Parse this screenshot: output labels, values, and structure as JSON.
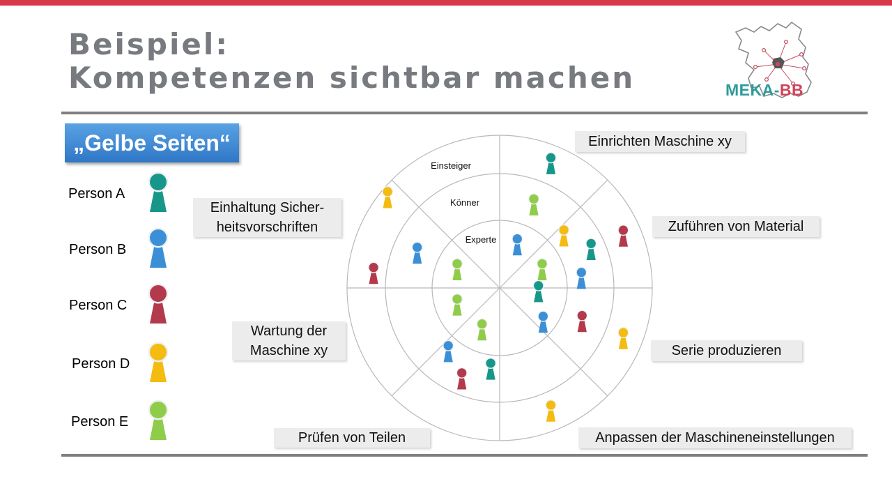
{
  "title": {
    "line1": "Beispiel:",
    "line2": "Kompetenzen sichtbar machen"
  },
  "logo": {
    "text_left": "MEKA-",
    "text_right": "BB"
  },
  "legend": {
    "heading": "„Gelbe Seiten“",
    "persons": [
      {
        "id": "A",
        "label": "Person A",
        "color": "#17978a"
      },
      {
        "id": "B",
        "label": "Person B",
        "color": "#3b8fd6"
      },
      {
        "id": "C",
        "label": "Person C",
        "color": "#b33a4c"
      },
      {
        "id": "D",
        "label": "Person D",
        "color": "#f4bb10"
      },
      {
        "id": "E",
        "label": "Person E",
        "color": "#8fcc4a"
      }
    ]
  },
  "chart_data": {
    "type": "radar-matrix",
    "rings": [
      "Experte",
      "Könner",
      "Einsteiger"
    ],
    "sectors": [
      "Einrichten Maschine xy",
      "Zuführen von Material",
      "Serie produzieren",
      "Anpassen der Maschineneinstellungen",
      "Prüfen von Teilen",
      "Wartung der Maschine xy",
      "Einhaltung Sicher-heitsvorschriften"
    ],
    "sector_labels": [
      [
        "Einrichten Maschine xy"
      ],
      [
        "Zuführen von Material"
      ],
      [
        "Serie produzieren"
      ],
      [
        "Anpassen der Maschineneinstellungen"
      ],
      [
        "Prüfen von Teilen"
      ],
      [
        "Wartung der",
        "Maschine xy"
      ],
      [
        "Einhaltung Sicher-",
        "heitsvorschriften"
      ]
    ],
    "placements": [
      {
        "person": "A",
        "sector": "Einrichten Maschine xy",
        "ring": "Einsteiger"
      },
      {
        "person": "E",
        "sector": "Einrichten Maschine xy",
        "ring": "Könner"
      },
      {
        "person": "B",
        "sector": "Einrichten Maschine xy",
        "ring": "Experte"
      },
      {
        "person": "D",
        "sector": "Zuführen von Material",
        "ring": "Könner"
      },
      {
        "person": "A",
        "sector": "Zuführen von Material",
        "ring": "Könner"
      },
      {
        "person": "E",
        "sector": "Zuführen von Material",
        "ring": "Experte"
      },
      {
        "person": "B",
        "sector": "Zuführen von Material",
        "ring": "Könner"
      },
      {
        "person": "C",
        "sector": "Zuführen von Material",
        "ring": "Einsteiger"
      },
      {
        "person": "A",
        "sector": "Serie produzieren",
        "ring": "Experte"
      },
      {
        "person": "B",
        "sector": "Serie produzieren",
        "ring": "Experte"
      },
      {
        "person": "D",
        "sector": "Serie produzieren",
        "ring": "Einsteiger"
      },
      {
        "person": "C",
        "sector": "Serie produzieren",
        "ring": "Könner"
      },
      {
        "person": "D",
        "sector": "Anpassen der Maschineneinstellungen",
        "ring": "Einsteiger"
      },
      {
        "person": "E",
        "sector": "Prüfen von Teilen",
        "ring": "Experte"
      },
      {
        "person": "A",
        "sector": "Prüfen von Teilen",
        "ring": "Könner"
      },
      {
        "person": "C",
        "sector": "Prüfen von Teilen",
        "ring": "Könner"
      },
      {
        "person": "B",
        "sector": "Prüfen von Teilen",
        "ring": "Könner"
      },
      {
        "person": "E",
        "sector": "Wartung der Maschine xy",
        "ring": "Experte"
      },
      {
        "person": "E",
        "sector": "Einhaltung Sicher-heitsvorschriften",
        "ring": "Experte"
      },
      {
        "person": "B",
        "sector": "Einhaltung Sicher-heitsvorschriften",
        "ring": "Könner"
      },
      {
        "person": "C",
        "sector": "Einhaltung Sicher-heitsvorschriften",
        "ring": "Einsteiger"
      },
      {
        "person": "D",
        "sector": "Einhaltung Sicher-heitsvorschriften",
        "ring": "Einsteiger"
      }
    ]
  }
}
